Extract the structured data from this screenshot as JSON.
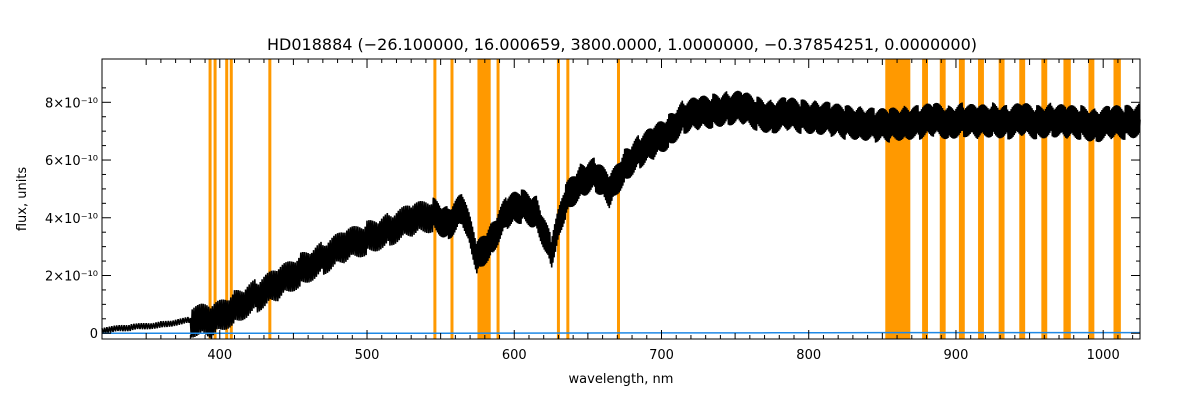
{
  "chart_data": {
    "type": "line",
    "title": "HD018884   (−26.100000, 16.000659, 3800.0000, 1.0000000, −0.37854251, 0.0000000)",
    "xlabel": "wavelength, nm",
    "ylabel": "flux, units",
    "xlim": [
      320,
      1025
    ],
    "ylim": [
      -2e-11,
      9.5e-10
    ],
    "x_ticks": [
      400,
      500,
      600,
      700,
      800,
      900,
      1000
    ],
    "y_ticks": [
      {
        "value": 0,
        "label": "0"
      },
      {
        "value": 2e-10,
        "label": "2×10⁻¹⁰"
      },
      {
        "value": 4e-10,
        "label": "4×10⁻¹⁰"
      },
      {
        "value": 6e-10,
        "label": "6×10⁻¹⁰"
      },
      {
        "value": 8e-10,
        "label": "8×10⁻¹⁰"
      }
    ],
    "series": [
      {
        "color": "#000000",
        "x": [
          320,
          340,
          360,
          380,
          395,
          410,
          425,
          440,
          455,
          470,
          485,
          500,
          515,
          530,
          545,
          555,
          565,
          575,
          585,
          595,
          605,
          615,
          625,
          635,
          645,
          655,
          665,
          675,
          685,
          695,
          705,
          715,
          725,
          735,
          745,
          755,
          765,
          775,
          785,
          795,
          805,
          815,
          825,
          835,
          845,
          855,
          865,
          875,
          885,
          895,
          905,
          915,
          925,
          935,
          945,
          955,
          965,
          975,
          985,
          995,
          1005,
          1015,
          1025
        ],
        "values": [
          1e-11,
          2e-11,
          3e-11,
          4.5e-11,
          4e-11,
          9e-11,
          1.3e-10,
          1.7e-10,
          2.2e-10,
          2.6e-10,
          3e-10,
          3.3e-10,
          3.6e-10,
          3.9e-10,
          4.1e-10,
          3.8e-10,
          4.3e-10,
          2.6e-10,
          3.3e-10,
          4.2e-10,
          4.4e-10,
          4.2e-10,
          2.8e-10,
          4.6e-10,
          5.3e-10,
          5.5e-10,
          4.9e-10,
          5.8e-10,
          6.3e-10,
          6.6e-10,
          7e-10,
          7.5e-10,
          7.6e-10,
          7.7e-10,
          7.8e-10,
          7.8e-10,
          7.6e-10,
          7.5e-10,
          7.6e-10,
          7.5e-10,
          7.5e-10,
          7.4e-10,
          7.3e-10,
          7.3e-10,
          7.2e-10,
          7.2e-10,
          7.3e-10,
          7.3e-10,
          7.4e-10,
          7.3e-10,
          7.4e-10,
          7.3e-10,
          7.4e-10,
          7.3e-10,
          7.4e-10,
          7.3e-10,
          7.4e-10,
          7.3e-10,
          7.3e-10,
          7.2e-10,
          7.3e-10,
          7.3e-10,
          7.4e-10
        ]
      },
      {
        "color": "#1e88e5",
        "x": [
          320,
          500,
          700,
          850,
          1025
        ],
        "values": [
          0.0,
          0.0,
          1e-12,
          2e-12,
          2e-12
        ]
      }
    ],
    "masked_regions": {
      "color": "#ff9900",
      "lines": [
        393.4,
        396.8,
        404.7,
        407.8,
        434.0,
        546.1,
        557.7,
        589.0,
        630.0,
        636.4,
        670.8
      ],
      "bands": [
        [
          575,
          584
        ],
        [
          852,
          869
        ],
        [
          877,
          881
        ],
        [
          889,
          893
        ],
        [
          902,
          906
        ],
        [
          915,
          919
        ],
        [
          929,
          933
        ],
        [
          943,
          947
        ],
        [
          958,
          962
        ],
        [
          973,
          978
        ],
        [
          990,
          994
        ],
        [
          1007,
          1012
        ]
      ]
    }
  }
}
